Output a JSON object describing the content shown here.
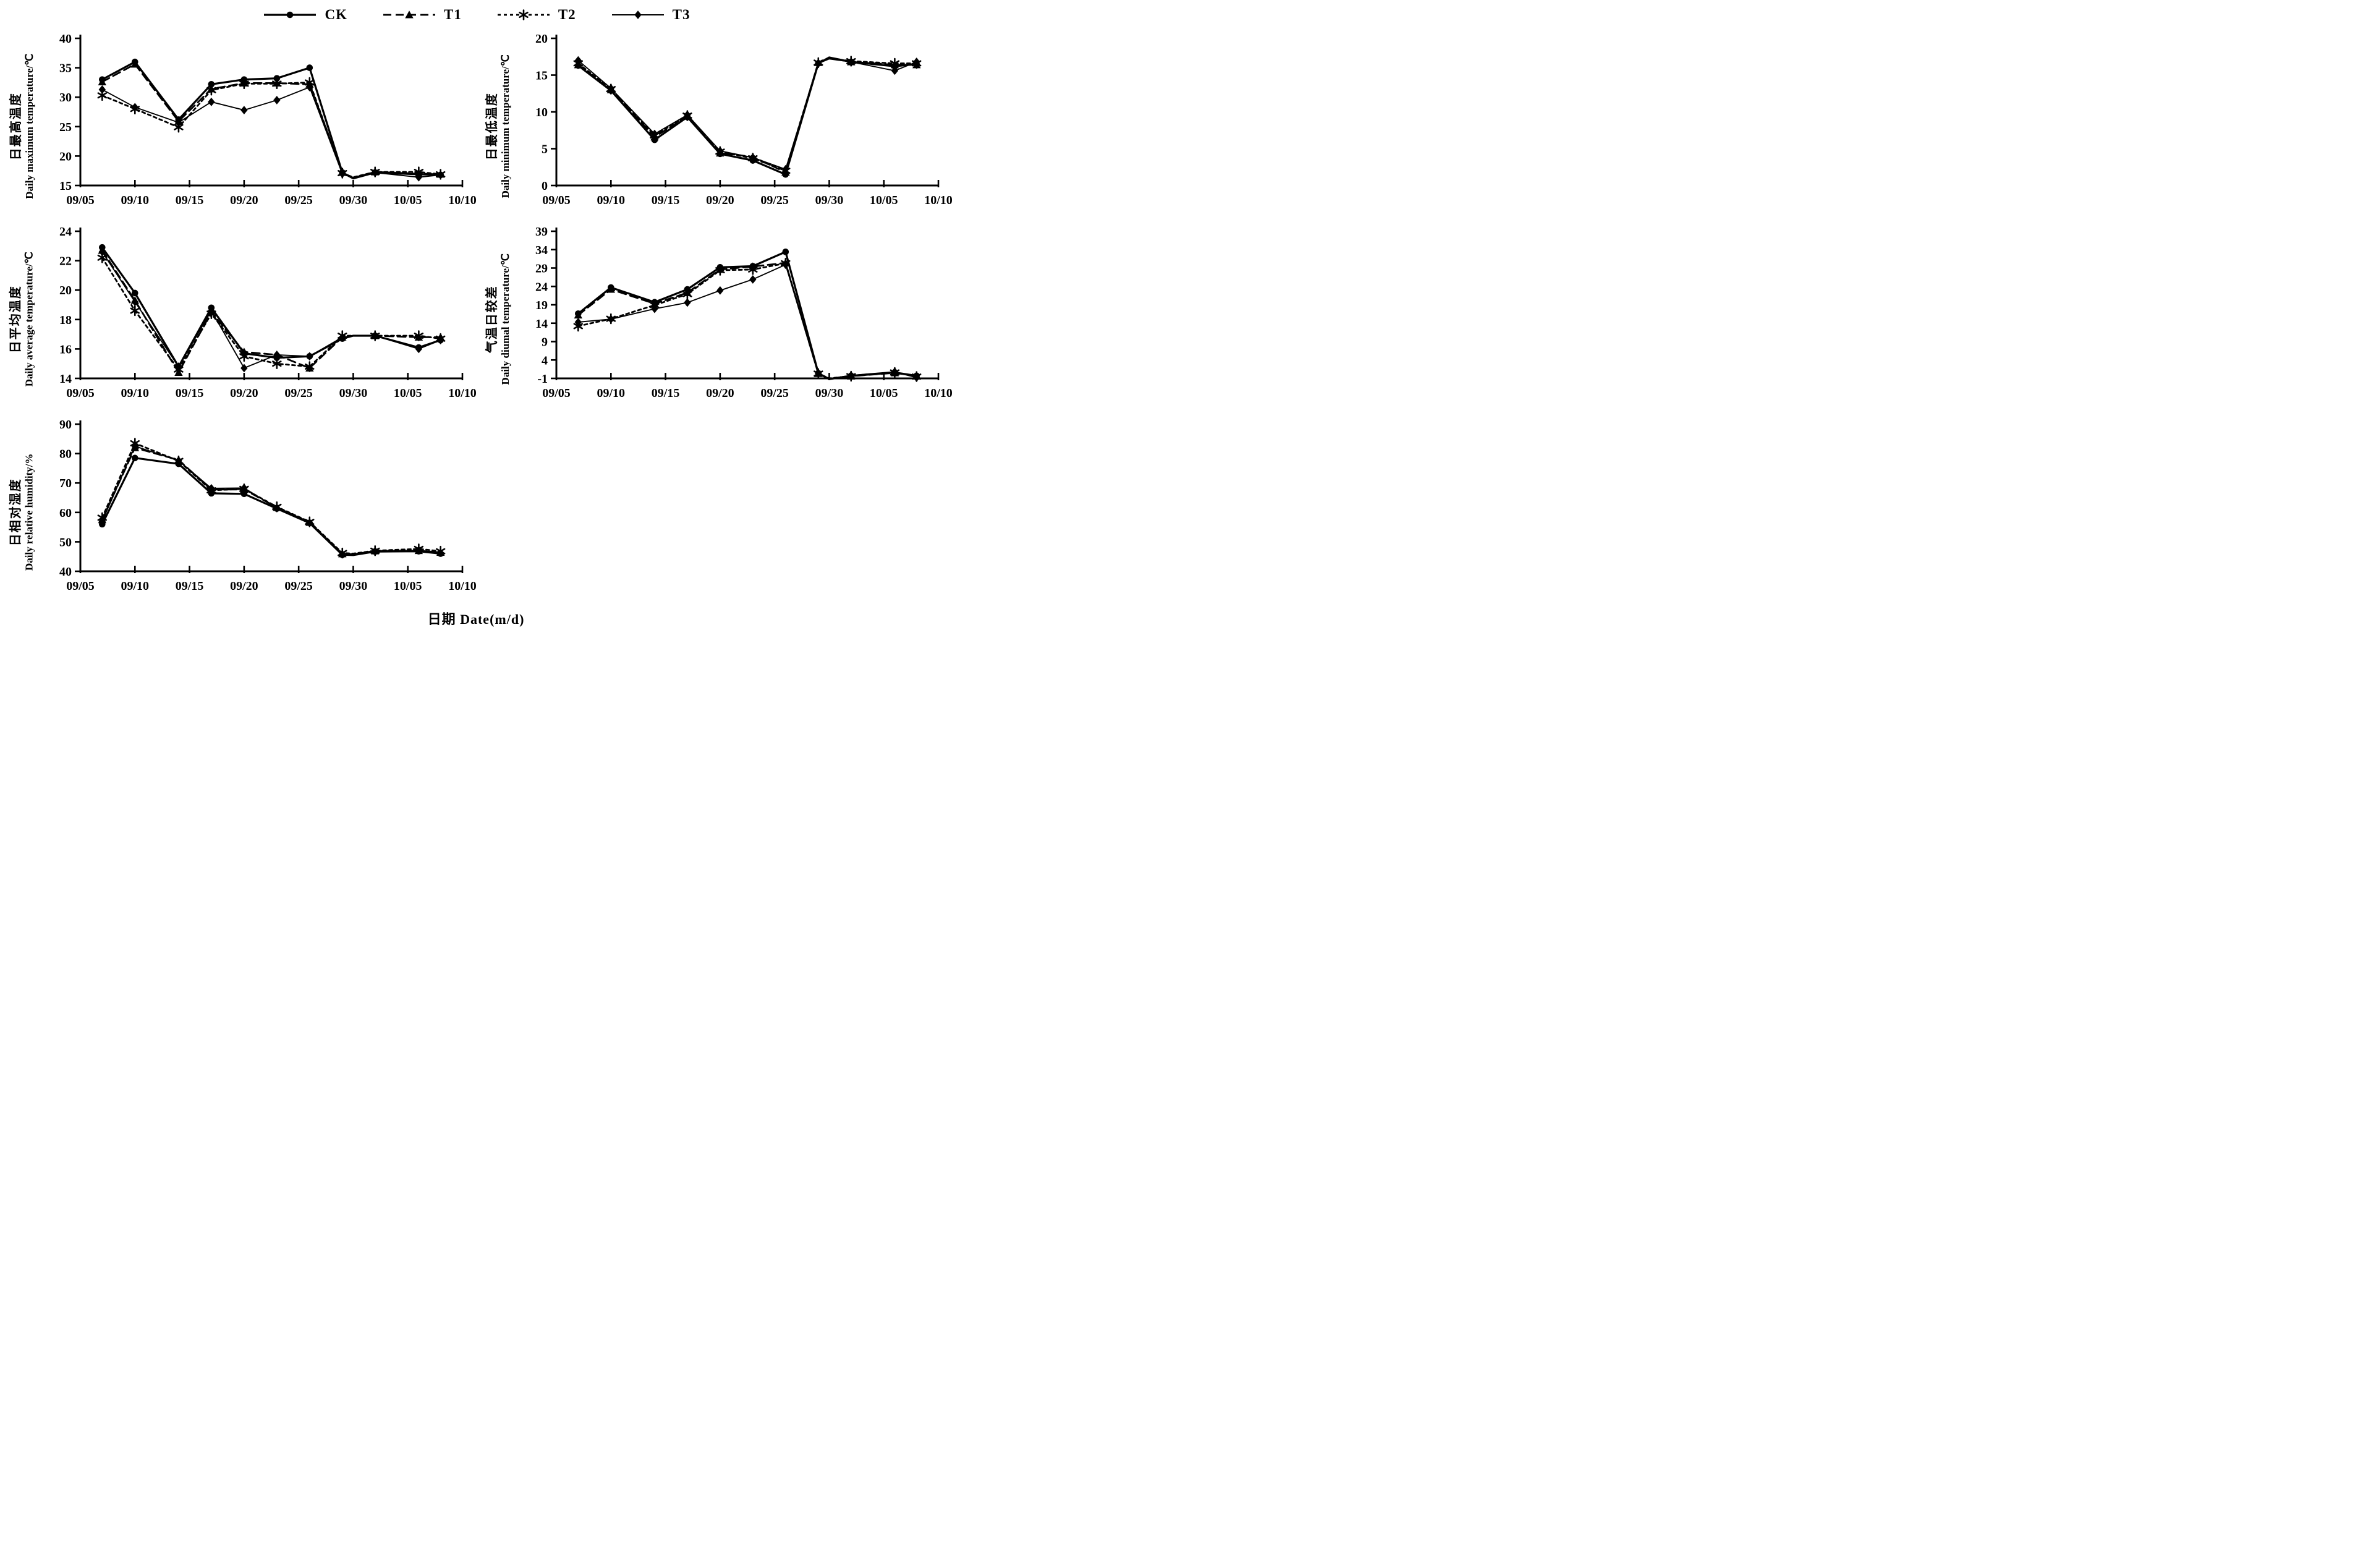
{
  "figure": {
    "xlabel": "日期 Date(m/d)",
    "x_axis": {
      "tick_labels": [
        "09/05",
        "09/10",
        "09/15",
        "09/20",
        "09/25",
        "09/30",
        "10/05",
        "10/10"
      ],
      "tick_days": [
        0,
        5,
        10,
        15,
        20,
        25,
        30,
        35
      ],
      "range_days": [
        0,
        35
      ]
    },
    "point_dates": [
      "09/07",
      "09/10",
      "09/14",
      "09/17",
      "09/20",
      "09/23",
      "09/26",
      "09/29",
      "09/30",
      "10/02",
      "10/06",
      "10/08"
    ],
    "point_days": [
      2,
      5,
      9,
      12,
      15,
      18,
      21,
      24,
      25,
      27,
      31,
      33
    ],
    "marker_skip_index": 8,
    "colors": {
      "ink": "#000000",
      "background": "#ffffff"
    }
  },
  "legend": [
    {
      "label": "CK",
      "marker": "circle",
      "line_style": "solid",
      "stroke_width": 3.2,
      "dash": ""
    },
    {
      "label": "T1",
      "marker": "triangle",
      "line_style": "long-dash",
      "stroke_width": 2.8,
      "dash": "13 7"
    },
    {
      "label": "T2",
      "marker": "asterisk",
      "line_style": "short-dash",
      "stroke_width": 2.8,
      "dash": "5 5"
    },
    {
      "label": "T3",
      "marker": "diamond",
      "line_style": "solid-thin",
      "stroke_width": 1.9,
      "dash": ""
    }
  ],
  "chart_data": [
    {
      "type": "line",
      "title_cn": "日最高温度",
      "title_en": "Daily maximum temperature/℃",
      "ylim": [
        15,
        40
      ],
      "yticks": [
        15,
        20,
        25,
        30,
        35,
        40
      ],
      "grid": false,
      "x_dates": [
        "09/07",
        "09/10",
        "09/14",
        "09/17",
        "09/20",
        "09/23",
        "09/26",
        "09/29",
        "09/30",
        "10/02",
        "10/06",
        "10/08"
      ],
      "series": [
        {
          "name": "CK",
          "values": [
            33.0,
            36.0,
            26.2,
            32.2,
            33.0,
            33.2,
            35.0,
            17.2,
            16.2,
            17.2,
            16.9,
            16.8
          ]
        },
        {
          "name": "T1",
          "values": [
            32.6,
            35.6,
            25.9,
            31.4,
            32.4,
            32.4,
            32.2,
            17.2,
            16.3,
            17.3,
            17.0,
            16.9
          ]
        },
        {
          "name": "T2",
          "values": [
            30.3,
            28.0,
            24.9,
            31.2,
            32.3,
            32.3,
            32.5,
            17.1,
            16.4,
            17.3,
            17.3,
            16.9
          ]
        },
        {
          "name": "T3",
          "values": [
            31.3,
            28.3,
            25.7,
            29.2,
            27.8,
            29.5,
            31.7,
            17.0,
            16.3,
            17.2,
            16.4,
            16.8
          ]
        }
      ]
    },
    {
      "type": "line",
      "title_cn": "日最低温度",
      "title_en": "Daily minimum temperature/℃",
      "ylim": [
        0,
        20
      ],
      "yticks": [
        0,
        5,
        10,
        15,
        20
      ],
      "grid": false,
      "x_dates": [
        "09/07",
        "09/10",
        "09/14",
        "09/17",
        "09/20",
        "09/23",
        "09/26",
        "09/29",
        "09/30",
        "10/02",
        "10/06",
        "10/08"
      ],
      "series": [
        {
          "name": "CK",
          "values": [
            16.3,
            12.9,
            6.2,
            9.3,
            4.3,
            3.4,
            1.5,
            16.6,
            17.4,
            16.8,
            16.2,
            16.5
          ]
        },
        {
          "name": "T1",
          "values": [
            16.4,
            13.0,
            6.6,
            9.4,
            4.4,
            3.9,
            1.8,
            16.7,
            17.3,
            16.8,
            16.4,
            16.4
          ]
        },
        {
          "name": "T2",
          "values": [
            16.6,
            13.1,
            6.8,
            9.5,
            4.6,
            3.7,
            2.0,
            16.7,
            17.3,
            16.9,
            16.6,
            16.6
          ]
        },
        {
          "name": "T3",
          "values": [
            17.0,
            13.2,
            7.0,
            9.6,
            4.7,
            3.8,
            2.2,
            16.6,
            17.2,
            16.8,
            15.6,
            16.8
          ]
        }
      ]
    },
    {
      "type": "line",
      "title_cn": "日平均温度",
      "title_en": "Daily average temperature/℃",
      "ylim": [
        14,
        24
      ],
      "yticks": [
        14,
        16,
        18,
        20,
        22,
        24
      ],
      "grid": false,
      "x_dates": [
        "09/07",
        "09/10",
        "09/14",
        "09/17",
        "09/20",
        "09/23",
        "09/26",
        "09/29",
        "09/30",
        "10/02",
        "10/06",
        "10/08"
      ],
      "series": [
        {
          "name": "CK",
          "values": [
            22.9,
            19.8,
            14.8,
            18.8,
            15.7,
            15.4,
            15.5,
            16.7,
            16.9,
            16.9,
            16.1,
            16.6
          ]
        },
        {
          "name": "T1",
          "values": [
            22.7,
            19.3,
            14.4,
            18.5,
            15.8,
            15.6,
            14.7,
            16.8,
            16.9,
            16.9,
            16.8,
            16.8
          ]
        },
        {
          "name": "T2",
          "values": [
            22.2,
            18.6,
            14.6,
            18.4,
            15.5,
            15.0,
            14.8,
            16.9,
            16.9,
            16.9,
            16.9,
            16.7
          ]
        },
        {
          "name": "T3",
          "values": [
            22.6,
            19.2,
            14.8,
            18.6,
            14.7,
            15.6,
            15.5,
            16.8,
            16.9,
            16.9,
            16.0,
            16.6
          ]
        }
      ]
    },
    {
      "type": "line",
      "title_cn": "气温日较差",
      "title_en": "Daily diumal temperature/℃",
      "ylim": [
        -1,
        39
      ],
      "yticks": [
        -1,
        4,
        9,
        14,
        19,
        24,
        29,
        34,
        39
      ],
      "grid": false,
      "x_dates": [
        "09/07",
        "09/10",
        "09/14",
        "09/17",
        "09/20",
        "09/23",
        "09/26",
        "09/29",
        "09/30",
        "10/02",
        "10/06",
        "10/08"
      ],
      "series": [
        {
          "name": "CK",
          "values": [
            16.6,
            23.7,
            19.7,
            23.2,
            29.2,
            29.5,
            33.4,
            0.4,
            -1.2,
            -0.3,
            0.6,
            -0.3
          ]
        },
        {
          "name": "T1",
          "values": [
            16.2,
            23.2,
            19.3,
            22.3,
            28.6,
            29.4,
            30.4,
            0.3,
            -1.1,
            -0.4,
            0.5,
            -0.4
          ]
        },
        {
          "name": "T2",
          "values": [
            13.2,
            15.2,
            18.9,
            21.9,
            28.4,
            28.6,
            30.3,
            0.3,
            -1.0,
            -0.4,
            0.6,
            -0.5
          ]
        },
        {
          "name": "T3",
          "values": [
            14.3,
            15.1,
            17.9,
            19.6,
            22.9,
            25.9,
            29.9,
            0.3,
            -1.1,
            -0.2,
            0.8,
            -0.8
          ]
        }
      ]
    },
    {
      "type": "line",
      "title_cn": "日相对湿度",
      "title_en": "Daily relative humidity/%",
      "ylim": [
        40,
        90
      ],
      "yticks": [
        40,
        50,
        60,
        70,
        80,
        90
      ],
      "grid": false,
      "x_dates": [
        "09/07",
        "09/10",
        "09/14",
        "09/17",
        "09/20",
        "09/23",
        "09/26",
        "09/29",
        "09/30",
        "10/02",
        "10/06",
        "10/08"
      ],
      "series": [
        {
          "name": "CK",
          "values": [
            56.0,
            78.5,
            76.5,
            66.5,
            66.3,
            61.3,
            56.4,
            45.6,
            45.5,
            46.7,
            46.8,
            46.0
          ]
        },
        {
          "name": "T1",
          "values": [
            57.5,
            82.0,
            77.8,
            67.8,
            67.8,
            61.7,
            56.6,
            45.9,
            45.8,
            46.9,
            47.0,
            46.4
          ]
        },
        {
          "name": "T2",
          "values": [
            58.2,
            83.5,
            77.5,
            67.5,
            68.0,
            61.9,
            56.8,
            46.2,
            46.0,
            47.0,
            47.6,
            46.8
          ]
        },
        {
          "name": "T3",
          "values": [
            57.0,
            82.5,
            77.6,
            68.2,
            68.3,
            61.5,
            56.5,
            45.8,
            45.7,
            46.8,
            47.1,
            46.3
          ]
        }
      ]
    }
  ]
}
